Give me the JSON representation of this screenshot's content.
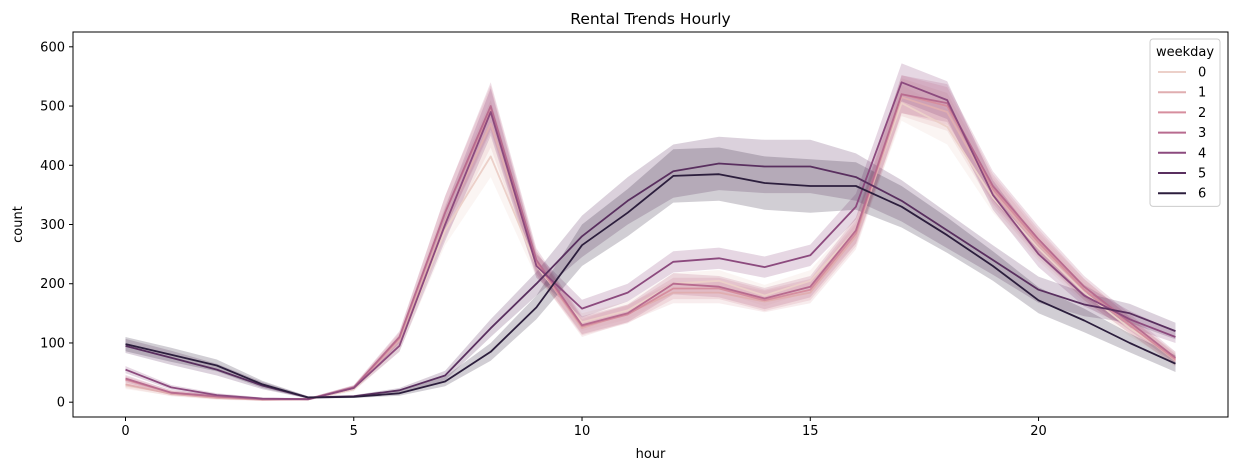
{
  "chart_data": {
    "type": "line",
    "title": "Rental Trends Hourly",
    "xlabel": "hour",
    "ylabel": "count",
    "xlim": [
      -1.15,
      24.15
    ],
    "ylim": [
      -25,
      625
    ],
    "xticks": [
      0,
      5,
      10,
      15,
      20
    ],
    "yticks": [
      0,
      100,
      200,
      300,
      400,
      500,
      600
    ],
    "grid": false,
    "confidence_bands": true,
    "legend": {
      "title": "weekday",
      "placement": "top-right"
    },
    "x": [
      0,
      1,
      2,
      3,
      4,
      5,
      6,
      7,
      8,
      9,
      10,
      11,
      12,
      13,
      14,
      15,
      16,
      17,
      18,
      19,
      20,
      21,
      22,
      23
    ],
    "series": [
      {
        "name": "0",
        "color": "#ecd0c9",
        "values": [
          28,
          15,
          8,
          5,
          5,
          22,
          95,
          290,
          415,
          230,
          135,
          155,
          200,
          205,
          180,
          205,
          290,
          505,
          465,
          345,
          260,
          185,
          125,
          75
        ],
        "band": [
          6,
          4,
          3,
          2,
          2,
          4,
          10,
          25,
          35,
          20,
          15,
          15,
          18,
          18,
          18,
          18,
          22,
          30,
          30,
          25,
          22,
          18,
          14,
          10
        ]
      },
      {
        "name": "1",
        "color": "#e0aeb0",
        "values": [
          30,
          14,
          7,
          4,
          5,
          24,
          105,
          305,
          470,
          235,
          125,
          150,
          185,
          185,
          170,
          185,
          280,
          515,
          490,
          355,
          265,
          190,
          130,
          70
        ],
        "band": [
          6,
          4,
          3,
          2,
          2,
          4,
          10,
          28,
          40,
          20,
          15,
          15,
          18,
          18,
          18,
          18,
          22,
          32,
          32,
          25,
          22,
          18,
          14,
          10
        ]
      },
      {
        "name": "2",
        "color": "#d68e9e",
        "values": [
          38,
          16,
          9,
          5,
          5,
          24,
          108,
          320,
          495,
          235,
          128,
          148,
          192,
          192,
          172,
          190,
          285,
          520,
          500,
          360,
          270,
          190,
          130,
          72
        ],
        "band": [
          6,
          4,
          3,
          2,
          2,
          4,
          10,
          28,
          40,
          20,
          15,
          15,
          18,
          18,
          18,
          18,
          22,
          32,
          32,
          25,
          22,
          18,
          14,
          10
        ]
      },
      {
        "name": "3",
        "color": "#b86b8f",
        "values": [
          40,
          16,
          10,
          5,
          5,
          25,
          110,
          320,
          500,
          240,
          130,
          150,
          200,
          195,
          175,
          195,
          290,
          520,
          505,
          365,
          275,
          195,
          135,
          75
        ],
        "band": [
          6,
          4,
          3,
          2,
          2,
          4,
          10,
          28,
          40,
          20,
          15,
          15,
          18,
          18,
          18,
          18,
          22,
          32,
          32,
          25,
          22,
          18,
          14,
          10
        ]
      },
      {
        "name": "4",
        "color": "#8c4a7e",
        "values": [
          55,
          25,
          12,
          6,
          5,
          24,
          95,
          300,
          490,
          230,
          158,
          185,
          237,
          243,
          228,
          248,
          330,
          540,
          510,
          350,
          250,
          180,
          140,
          110
        ],
        "band": [
          6,
          4,
          3,
          2,
          2,
          4,
          10,
          28,
          40,
          20,
          15,
          15,
          18,
          18,
          18,
          18,
          22,
          32,
          32,
          25,
          22,
          18,
          14,
          10
        ]
      },
      {
        "name": "5",
        "color": "#592f5f",
        "values": [
          95,
          75,
          55,
          28,
          8,
          10,
          20,
          45,
          125,
          200,
          280,
          340,
          390,
          403,
          398,
          398,
          380,
          340,
          290,
          240,
          190,
          165,
          150,
          120
        ],
        "band": [
          12,
          12,
          10,
          6,
          2,
          2,
          4,
          8,
          15,
          20,
          35,
          40,
          45,
          45,
          45,
          45,
          40,
          35,
          30,
          25,
          22,
          20,
          16,
          14
        ]
      },
      {
        "name": "6",
        "color": "#2c1e3d",
        "values": [
          98,
          80,
          62,
          30,
          8,
          9,
          15,
          35,
          85,
          160,
          265,
          320,
          382,
          385,
          370,
          365,
          365,
          330,
          282,
          230,
          172,
          138,
          100,
          65
        ],
        "band": [
          12,
          12,
          10,
          6,
          2,
          2,
          4,
          8,
          15,
          20,
          35,
          40,
          45,
          45,
          45,
          45,
          40,
          35,
          30,
          25,
          22,
          20,
          16,
          14
        ]
      }
    ]
  }
}
